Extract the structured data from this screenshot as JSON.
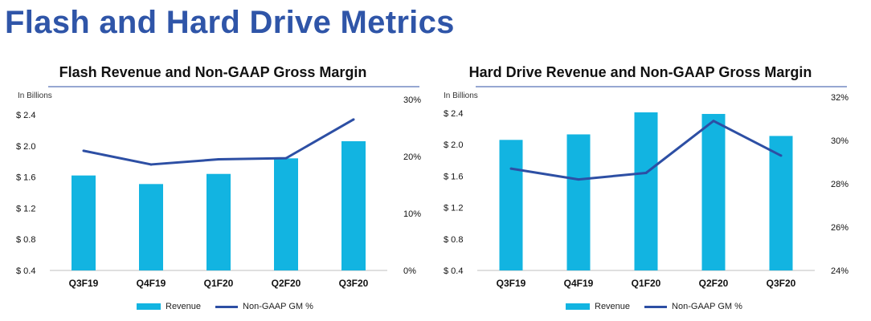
{
  "page": {
    "title": "Flash and Hard Drive Metrics"
  },
  "colors": {
    "title": "#2f55a8",
    "bar": "#12b4e1",
    "line": "#2d4fa4",
    "rule": "#2d4fa4",
    "axis": "#bfbfbf"
  },
  "chart_data": [
    {
      "type": "bar",
      "title": "Flash Revenue and Non-GAAP Gross Margin",
      "unit_label": "In Billions",
      "categories": [
        "Q3F19",
        "Q4F19",
        "Q1F20",
        "Q2F20",
        "Q3F20"
      ],
      "series": [
        {
          "name": "Revenue",
          "type": "bar",
          "axis": "left",
          "values": [
            1.62,
            1.51,
            1.64,
            1.84,
            2.06
          ]
        },
        {
          "name": "Non-GAAP GM %",
          "type": "line",
          "axis": "right",
          "values": [
            21.0,
            18.6,
            19.5,
            19.7,
            26.5
          ]
        }
      ],
      "y_left": {
        "ticks": [
          "$ 0.4",
          "$ 0.8",
          "$ 1.2",
          "$ 1.6",
          "$ 2.0",
          "$ 2.4"
        ],
        "lim": [
          0.4,
          2.4
        ]
      },
      "y_right": {
        "ticks": [
          "0%",
          "10%",
          "20%",
          "30%"
        ],
        "lim": [
          0,
          30
        ]
      },
      "legend": {
        "position": "bottom",
        "revenue_label": "Revenue",
        "gm_label": "Non-GAAP GM %"
      },
      "grid": false
    },
    {
      "type": "bar",
      "title": "Hard Drive Revenue and Non-GAAP Gross Margin",
      "unit_label": "In Billions",
      "categories": [
        "Q3F19",
        "Q4F19",
        "Q1F20",
        "Q2F20",
        "Q3F20"
      ],
      "series": [
        {
          "name": "Revenue",
          "type": "bar",
          "axis": "left",
          "values": [
            2.06,
            2.13,
            2.41,
            2.39,
            2.11
          ]
        },
        {
          "name": "Non-GAAP GM %",
          "type": "line",
          "axis": "right",
          "values": [
            28.7,
            28.2,
            28.5,
            30.9,
            29.3
          ]
        }
      ],
      "y_left": {
        "ticks": [
          "$ 0.4",
          "$ 0.8",
          "$ 1.2",
          "$ 1.6",
          "$ 2.0",
          "$ 2.4"
        ],
        "lim": [
          0.4,
          2.4
        ]
      },
      "y_right": {
        "ticks": [
          "24%",
          "26%",
          "28%",
          "30%",
          "32%"
        ],
        "lim": [
          24,
          32
        ]
      },
      "legend": {
        "position": "bottom",
        "revenue_label": "Revenue",
        "gm_label": "Non-GAAP GM %"
      },
      "grid": false
    }
  ]
}
